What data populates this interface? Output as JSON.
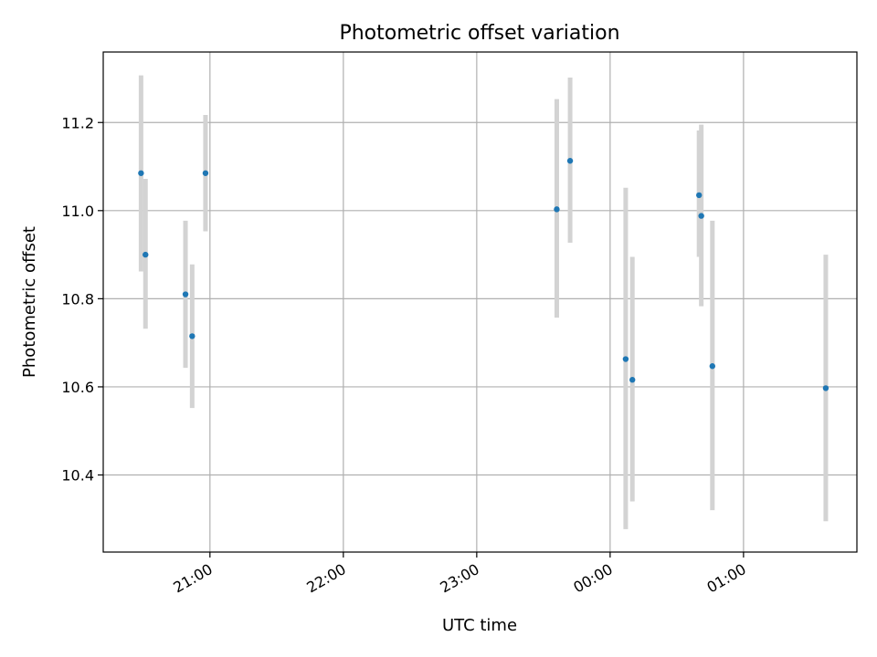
{
  "chart_data": {
    "type": "scatter",
    "title": "Photometric offset variation",
    "xlabel": "UTC time",
    "ylabel": "Photometric offset",
    "x_axis": "time",
    "xlim": [
      "20:12",
      "01:51"
    ],
    "ylim": [
      10.225,
      11.36
    ],
    "x_ticks": [
      "21:00",
      "22:00",
      "23:00",
      "00:00",
      "01:00"
    ],
    "y_ticks": [
      "10.4",
      "10.6",
      "10.8",
      "11.0",
      "11.2"
    ],
    "grid": true,
    "legend": "none",
    "point_color": "#1f77b4",
    "errorbar_color": "#d3d3d3",
    "points": [
      {
        "x": "20:29",
        "y": 11.085,
        "yerr_low": 10.862,
        "yerr_high": 11.307
      },
      {
        "x": "20:31",
        "y": 10.9,
        "yerr_low": 10.732,
        "yerr_high": 11.072
      },
      {
        "x": "20:49",
        "y": 10.81,
        "yerr_low": 10.643,
        "yerr_high": 10.977
      },
      {
        "x": "20:52",
        "y": 10.715,
        "yerr_low": 10.552,
        "yerr_high": 10.878
      },
      {
        "x": "20:58",
        "y": 11.085,
        "yerr_low": 10.953,
        "yerr_high": 11.217
      },
      {
        "x": "23:36",
        "y": 11.003,
        "yerr_low": 10.757,
        "yerr_high": 11.253
      },
      {
        "x": "23:42",
        "y": 11.113,
        "yerr_low": 10.927,
        "yerr_high": 11.302
      },
      {
        "x": "00:07",
        "y": 10.663,
        "yerr_low": 10.277,
        "yerr_high": 11.052
      },
      {
        "x": "00:10",
        "y": 10.616,
        "yerr_low": 10.34,
        "yerr_high": 10.895
      },
      {
        "x": "00:40",
        "y": 11.035,
        "yerr_low": 10.895,
        "yerr_high": 11.182
      },
      {
        "x": "00:41",
        "y": 10.988,
        "yerr_low": 10.783,
        "yerr_high": 11.195
      },
      {
        "x": "00:46",
        "y": 10.647,
        "yerr_low": 10.32,
        "yerr_high": 10.977
      },
      {
        "x": "01:37",
        "y": 10.597,
        "yerr_low": 10.295,
        "yerr_high": 10.9
      }
    ]
  }
}
